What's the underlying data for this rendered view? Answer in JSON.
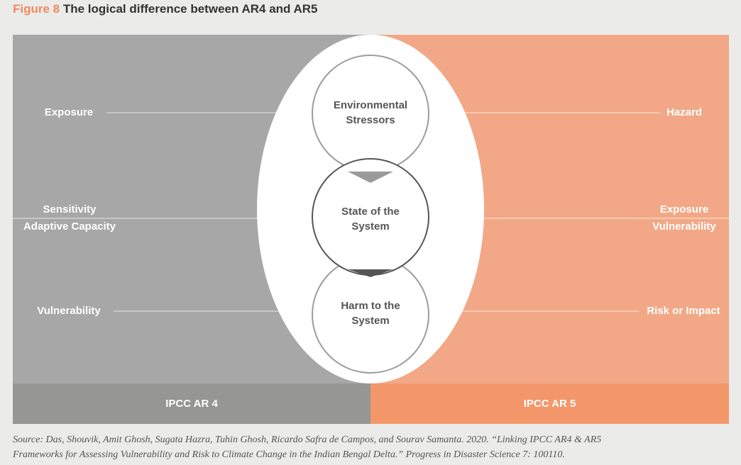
{
  "figure": {
    "number": "Figure 8",
    "title": "The logical difference between AR4 and AR5"
  },
  "center": {
    "circles": [
      {
        "line1": "Environmental",
        "line2": "Stressors"
      },
      {
        "line1": "State of the",
        "line2": "System"
      },
      {
        "line1": "Harm to the",
        "line2": "System"
      }
    ]
  },
  "left": {
    "labels": [
      {
        "line1": "Exposure"
      },
      {
        "line1": "Sensitivity",
        "line2": "Adaptive Capacity"
      },
      {
        "line1": "Vulnerability"
      }
    ],
    "footer": "IPCC AR 4"
  },
  "right": {
    "labels": [
      {
        "line1": "Hazard"
      },
      {
        "line1": "Exposure",
        "line2": "Vulnerability"
      },
      {
        "line1": "Risk or Impact"
      }
    ],
    "footer": "IPCC AR 5"
  },
  "source": {
    "line1": "Source: Das, Shouvik, Amit Ghosh, Sugata Hazra, Tuhin Ghosh, Ricardo Safra de Campos, and Sourav Samanta. 2020. “Linking IPCC AR4 & AR5",
    "line2": "Frameworks for Assessing Vulnerability and Risk to Climate Change in the Indian Bengal Delta.” Progress in Disaster Science 7: 100110."
  },
  "colors": {
    "ar4_panel": "#a7a7a7",
    "ar4_bar": "#969695",
    "ar5_panel": "#f2a886",
    "ar5_bar": "#f3976a",
    "title_accent": "#ef8a5a"
  }
}
